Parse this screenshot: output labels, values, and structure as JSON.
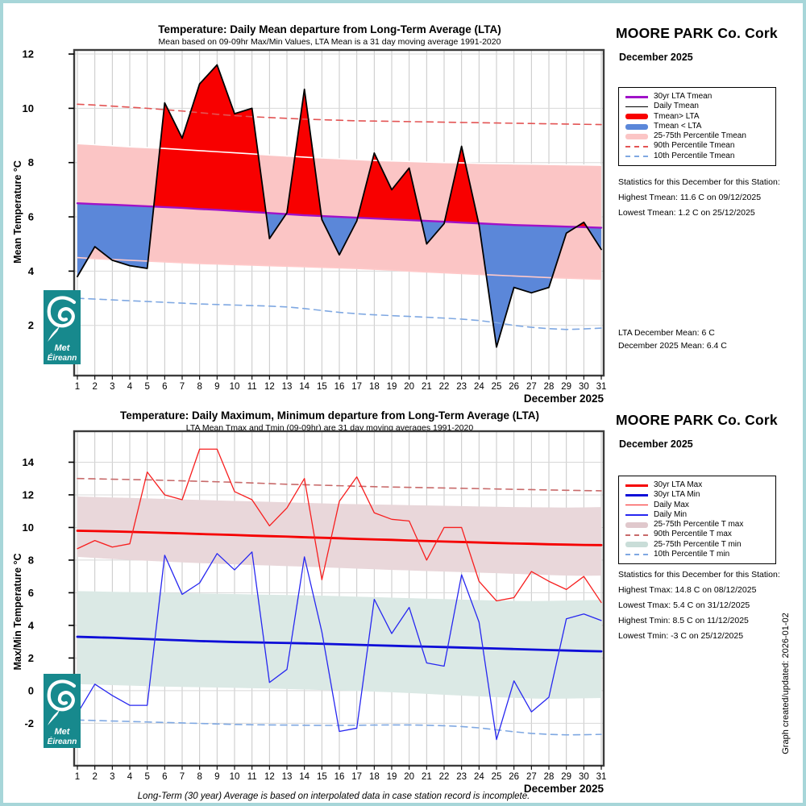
{
  "page": {
    "caption": "Long-Term (30 year) Average is based on interpolated data in case station record is incomplete.",
    "created_note": "Graph created/updated: 2026-01-02"
  },
  "logo": {
    "line1": "Met",
    "line2": "Éireann",
    "color": "#17898d"
  },
  "charts": [
    {
      "station": "MOORE PARK Co. Cork",
      "month": "December 2025",
      "title": "Temperature: Daily Mean departure from Long-Term Average (LTA)",
      "subtitle": "Mean based on 09-09hr Max/Min Values, LTA Mean is a 31 day moving average 1991-2020",
      "ylabel": "Mean Temperature °C",
      "legend": [
        {
          "label": "30yr LTA Tmean",
          "swatch": "line-thick",
          "color": "#a012c8"
        },
        {
          "label": "Daily Tmean",
          "swatch": "line-thin",
          "color": "#000000"
        },
        {
          "label": "Tmean> LTA",
          "swatch": "patch",
          "color": "#f80000"
        },
        {
          "label": "Tmean < LTA",
          "swatch": "patch",
          "color": "#5b87d9"
        },
        {
          "label": "25-75th Percentile Tmean",
          "swatch": "patch",
          "color": "#fbc5c5"
        },
        {
          "label": "90th Percentile Tmean",
          "swatch": "dash",
          "color": "#e35454"
        },
        {
          "label": "10th Percentile Tmean",
          "swatch": "dash",
          "color": "#7fa8e2"
        }
      ],
      "stats": [
        "Statistics for this December for this Station:",
        "Highest Tmean: 11.6 C on 09/12/2025",
        "Lowest Tmean: 1.2 C on 25/12/2025"
      ],
      "summary": [
        "LTA December Mean: 6 C",
        "December 2025 Mean: 6.4 C"
      ]
    },
    {
      "station": "MOORE PARK Co. Cork",
      "month": "December 2025",
      "title": "Temperature: Daily Maximum, Minimum departure from Long-Term Average (LTA)",
      "subtitle": "LTA Mean Tmax and Tmin (09-09hr) are 31 day moving averages 1991-2020",
      "ylabel": "Max/Min Temperature °C",
      "legend": [
        {
          "label": "30yr LTA Max",
          "swatch": "line-thick",
          "color": "#f50000"
        },
        {
          "label": "30yr LTA Min",
          "swatch": "line-thick",
          "color": "#0e0ed8"
        },
        {
          "label": "Daily Max",
          "swatch": "line-thin",
          "color": "#f71f1f"
        },
        {
          "label": "Daily Min",
          "swatch": "line-thin",
          "color": "#2727f0"
        },
        {
          "label": "25-75th Percentile T max",
          "swatch": "patch",
          "color": "#e0c8cc"
        },
        {
          "label": "90th Percentile T max",
          "swatch": "dash",
          "color": "#c86a6a"
        },
        {
          "label": "25-75th Percentile T min",
          "swatch": "patch",
          "color": "#c9ddd8"
        },
        {
          "label": "10th Percentile T min",
          "swatch": "dash",
          "color": "#7fa8e2"
        }
      ],
      "stats": [
        "Statistics for this December for this Station:",
        "Highest Tmax: 14.8 C on 08/12/2025",
        "Lowest Tmax: 5.4 C on 31/12/2025",
        "Highest Tmin: 8.5 C on 11/12/2025",
        "Lowest Tmin: -3 C on 25/12/2025"
      ],
      "summary": []
    }
  ],
  "chart_data": [
    {
      "type": "line",
      "title": "Temperature: Daily Mean departure from Long-Term Average (LTA)",
      "xlabel": "December 2025",
      "ylabel": "Mean Temperature °C",
      "x": [
        1,
        2,
        3,
        4,
        5,
        6,
        7,
        8,
        9,
        10,
        11,
        12,
        13,
        14,
        15,
        16,
        17,
        18,
        19,
        20,
        21,
        22,
        23,
        24,
        25,
        26,
        27,
        28,
        29,
        30,
        31
      ],
      "ylim": [
        0.15,
        12.15
      ],
      "yticks": [
        2,
        4,
        6,
        8,
        10,
        12
      ],
      "grid": true,
      "legend_position": "right",
      "bands": [
        {
          "name": "25-75th Percentile Tmean",
          "color": "#fbc5c5",
          "edge_top": "#ffffff",
          "edge_bottom": "#ffc9c9",
          "top": [
            8.7,
            8.66,
            8.62,
            8.58,
            8.55,
            8.52,
            8.48,
            8.44,
            8.4,
            8.36,
            8.32,
            8.28,
            8.24,
            8.2,
            8.17,
            8.14,
            8.11,
            8.08,
            8.06,
            8.04,
            8.02,
            8.0,
            7.99,
            7.97,
            7.96,
            7.95,
            7.94,
            7.93,
            7.92,
            7.91,
            7.9
          ],
          "bottom": [
            4.5,
            4.46,
            4.43,
            4.4,
            4.37,
            4.34,
            4.31,
            4.28,
            4.26,
            4.24,
            4.22,
            4.2,
            4.18,
            4.16,
            4.14,
            4.12,
            4.1,
            4.07,
            4.04,
            4.0,
            3.97,
            3.94,
            3.91,
            3.88,
            3.85,
            3.82,
            3.79,
            3.76,
            3.74,
            3.72,
            3.7
          ]
        }
      ],
      "fill": {
        "series": "Daily Tmean",
        "reference": "30yr LTA Tmean",
        "above": "#f80000",
        "below": "#5b87d9"
      },
      "series": [
        {
          "name": "90th Percentile Tmean",
          "color": "#e35454",
          "width": 1.6,
          "dash": true,
          "values": [
            10.15,
            10.12,
            10.08,
            10.04,
            10.0,
            9.95,
            9.9,
            9.84,
            9.78,
            9.73,
            9.69,
            9.66,
            9.63,
            9.6,
            9.58,
            9.56,
            9.54,
            9.53,
            9.52,
            9.51,
            9.5,
            9.49,
            9.48,
            9.47,
            9.46,
            9.45,
            9.44,
            9.43,
            9.42,
            9.41,
            9.4
          ]
        },
        {
          "name": "10th Percentile Tmean",
          "color": "#7fa8e2",
          "width": 1.6,
          "dash": true,
          "values": [
            3.0,
            2.97,
            2.94,
            2.91,
            2.88,
            2.85,
            2.82,
            2.79,
            2.77,
            2.75,
            2.73,
            2.71,
            2.68,
            2.62,
            2.55,
            2.48,
            2.43,
            2.39,
            2.36,
            2.33,
            2.3,
            2.27,
            2.23,
            2.18,
            2.1,
            2.0,
            1.93,
            1.88,
            1.85,
            1.87,
            1.9
          ]
        },
        {
          "name": "30yr LTA Tmean",
          "color": "#a012c8",
          "width": 2.4,
          "dash": false,
          "values": [
            6.5,
            6.47,
            6.45,
            6.42,
            6.39,
            6.36,
            6.33,
            6.29,
            6.26,
            6.22,
            6.18,
            6.14,
            6.1,
            6.06,
            6.03,
            6.0,
            5.97,
            5.94,
            5.91,
            5.88,
            5.85,
            5.82,
            5.79,
            5.76,
            5.73,
            5.7,
            5.68,
            5.66,
            5.64,
            5.62,
            5.6
          ]
        },
        {
          "name": "Daily Tmean",
          "color": "#000000",
          "width": 1.8,
          "dash": false,
          "values": [
            3.8,
            4.9,
            4.4,
            4.2,
            4.1,
            10.2,
            8.9,
            10.9,
            11.6,
            9.8,
            10.0,
            5.2,
            6.15,
            10.7,
            5.9,
            4.6,
            5.85,
            8.35,
            7.0,
            7.8,
            5.0,
            5.75,
            8.6,
            5.7,
            1.2,
            3.4,
            3.2,
            3.4,
            5.4,
            5.8,
            4.8
          ]
        }
      ]
    },
    {
      "type": "line",
      "title": "Temperature: Daily Maximum, Minimum departure from Long-Term Average (LTA)",
      "xlabel": "December 2025",
      "ylabel": "Max/Min Temperature °C",
      "x": [
        1,
        2,
        3,
        4,
        5,
        6,
        7,
        8,
        9,
        10,
        11,
        12,
        13,
        14,
        15,
        16,
        17,
        18,
        19,
        20,
        21,
        22,
        23,
        24,
        25,
        26,
        27,
        28,
        29,
        30,
        31
      ],
      "ylim": [
        -4.6,
        15.9
      ],
      "yticks": [
        -2,
        0,
        2,
        4,
        6,
        8,
        10,
        12,
        14
      ],
      "grid": true,
      "legend_position": "right",
      "bands": [
        {
          "name": "25-75th Percentile T max",
          "color": "#e9d7da",
          "top": [
            11.9,
            11.87,
            11.84,
            11.81,
            11.78,
            11.75,
            11.72,
            11.69,
            11.66,
            11.63,
            11.6,
            11.57,
            11.54,
            11.51,
            11.48,
            11.45,
            11.43,
            11.41,
            11.39,
            11.37,
            11.35,
            11.33,
            11.31,
            11.29,
            11.27,
            11.25,
            11.24,
            11.23,
            11.22,
            11.23,
            11.25
          ],
          "bottom": [
            8.2,
            8.13,
            8.07,
            8.01,
            7.96,
            7.91,
            7.86,
            7.82,
            7.78,
            7.74,
            7.7,
            7.67,
            7.63,
            7.6,
            7.56,
            7.52,
            7.48,
            7.44,
            7.4,
            7.37,
            7.33,
            7.3,
            7.27,
            7.23,
            7.2,
            7.16,
            7.12,
            7.08,
            7.05,
            7.04,
            7.05
          ]
        },
        {
          "name": "25-75th Percentile T min",
          "color": "#dbe9e5",
          "top": [
            6.1,
            6.08,
            6.06,
            6.04,
            6.02,
            6.0,
            5.98,
            5.96,
            5.94,
            5.92,
            5.9,
            5.88,
            5.86,
            5.84,
            5.82,
            5.79,
            5.76,
            5.73,
            5.7,
            5.67,
            5.64,
            5.61,
            5.58,
            5.55,
            5.52,
            5.5,
            5.49,
            5.5,
            5.52,
            5.54,
            5.56
          ],
          "bottom": [
            0.4,
            0.37,
            0.34,
            0.31,
            0.28,
            0.25,
            0.23,
            0.21,
            0.19,
            0.17,
            0.15,
            0.13,
            0.1,
            0.07,
            0.04,
            0.01,
            -0.02,
            -0.06,
            -0.1,
            -0.15,
            -0.2,
            -0.25,
            -0.3,
            -0.35,
            -0.4,
            -0.44,
            -0.48,
            -0.5,
            -0.49,
            -0.47,
            -0.45
          ]
        }
      ],
      "series": [
        {
          "name": "90th Percentile T max",
          "color": "#c86a6a",
          "width": 1.6,
          "dash": true,
          "values": [
            13.0,
            12.98,
            12.96,
            12.94,
            12.92,
            12.89,
            12.86,
            12.83,
            12.8,
            12.77,
            12.73,
            12.69,
            12.65,
            12.62,
            12.59,
            12.56,
            12.53,
            12.5,
            12.48,
            12.46,
            12.44,
            12.42,
            12.4,
            12.38,
            12.36,
            12.34,
            12.32,
            12.3,
            12.28,
            12.26,
            12.25
          ]
        },
        {
          "name": "10th Percentile T min",
          "color": "#7fa8e2",
          "width": 1.6,
          "dash": true,
          "values": [
            -1.8,
            -1.83,
            -1.86,
            -1.89,
            -1.92,
            -1.95,
            -1.98,
            -2.01,
            -2.04,
            -2.07,
            -2.09,
            -2.1,
            -2.11,
            -2.12,
            -2.13,
            -2.13,
            -2.12,
            -2.11,
            -2.1,
            -2.1,
            -2.12,
            -2.15,
            -2.2,
            -2.28,
            -2.4,
            -2.52,
            -2.62,
            -2.68,
            -2.71,
            -2.7,
            -2.68
          ]
        },
        {
          "name": "30yr LTA Max",
          "color": "#f50000",
          "width": 2.8,
          "dash": false,
          "values": [
            9.8,
            9.78,
            9.76,
            9.73,
            9.7,
            9.67,
            9.64,
            9.6,
            9.57,
            9.54,
            9.5,
            9.47,
            9.44,
            9.4,
            9.37,
            9.34,
            9.3,
            9.27,
            9.24,
            9.2,
            9.17,
            9.14,
            9.11,
            9.08,
            9.05,
            9.02,
            9.0,
            8.97,
            8.95,
            8.93,
            8.92
          ]
        },
        {
          "name": "30yr LTA Min",
          "color": "#0e0ed8",
          "width": 2.8,
          "dash": false,
          "values": [
            3.3,
            3.27,
            3.24,
            3.2,
            3.16,
            3.12,
            3.08,
            3.04,
            3.01,
            2.98,
            2.96,
            2.94,
            2.92,
            2.9,
            2.87,
            2.84,
            2.81,
            2.78,
            2.75,
            2.72,
            2.7,
            2.67,
            2.64,
            2.61,
            2.58,
            2.55,
            2.52,
            2.49,
            2.46,
            2.43,
            2.41
          ]
        },
        {
          "name": "Daily Max",
          "color": "#f71f1f",
          "width": 1.3,
          "dash": false,
          "values": [
            8.7,
            9.2,
            8.8,
            9.0,
            13.4,
            12.0,
            11.7,
            14.8,
            14.8,
            12.2,
            11.7,
            10.1,
            11.2,
            13.0,
            6.8,
            11.6,
            13.1,
            10.9,
            10.5,
            10.4,
            8.0,
            10.0,
            10.0,
            6.7,
            5.5,
            5.7,
            7.3,
            6.7,
            6.2,
            7.0,
            5.4
          ]
        },
        {
          "name": "Daily Min",
          "color": "#2727f0",
          "width": 1.3,
          "dash": false,
          "values": [
            -1.4,
            0.4,
            -0.3,
            -0.9,
            -0.9,
            8.3,
            5.9,
            6.6,
            8.4,
            7.4,
            8.5,
            0.5,
            1.3,
            8.2,
            3.6,
            -2.5,
            -2.3,
            5.6,
            3.5,
            5.1,
            1.7,
            1.5,
            7.1,
            4.2,
            -3.0,
            0.6,
            -1.3,
            -0.4,
            4.4,
            4.7,
            4.3
          ]
        }
      ]
    }
  ]
}
